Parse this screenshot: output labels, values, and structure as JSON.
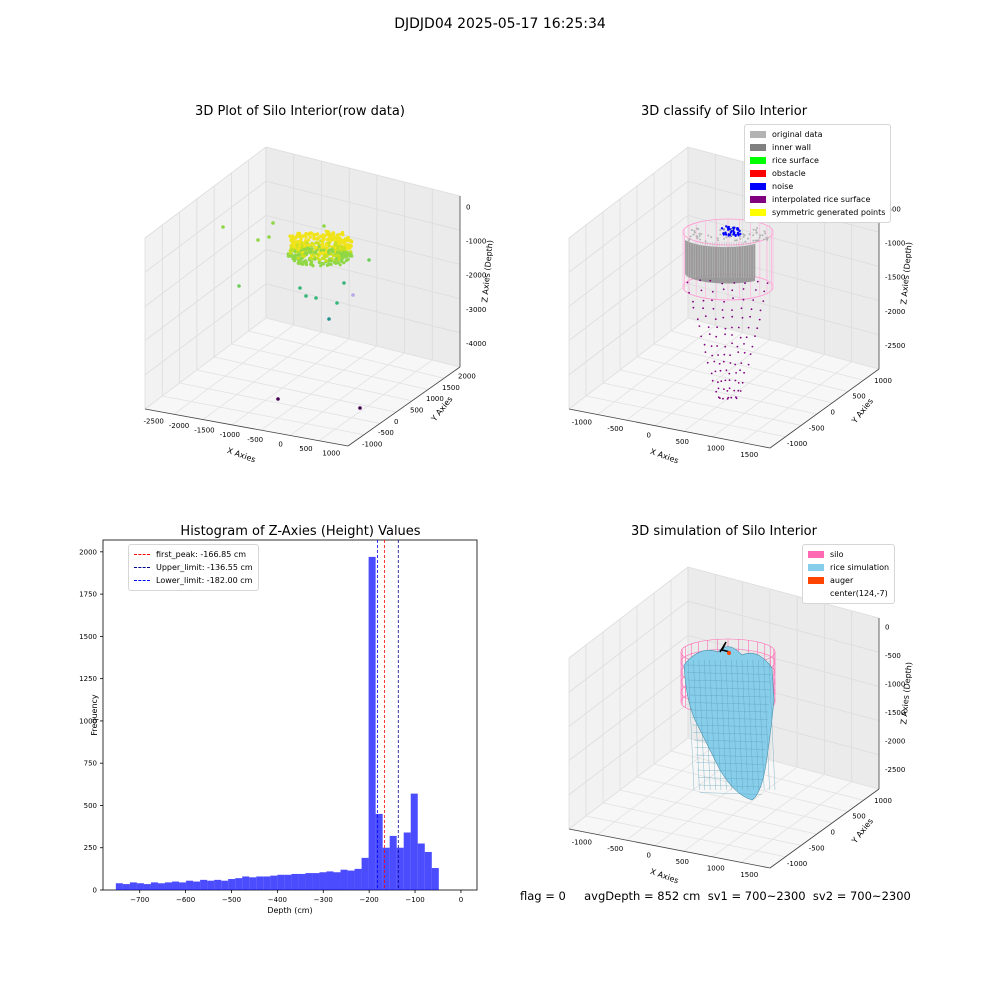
{
  "suptitle": "DJDJD04 2025-05-17 16:25:34",
  "footer": "flag = 0     avgDepth = 852 cm  sv1 = 700~2300  sv2 = 700~2300",
  "chart_data": [
    {
      "type": "scatter3d",
      "title": "3D Plot of Silo Interior(row data)",
      "xlabel": "X Axies",
      "ylabel": "Y Axies",
      "zlabel": "Z Axies (Depth)",
      "xticks": [
        "-2500",
        "-2000",
        "-1500",
        "-1000",
        "-500",
        "0",
        "500",
        "1000"
      ],
      "yticks": [
        "-1000",
        "-500",
        "0",
        "500",
        "1000",
        "1500",
        "2000"
      ],
      "zticks": [
        "0",
        "-1000",
        "-2000",
        "-3000",
        "-4000"
      ],
      "colormap": "viridis",
      "notes": "dense ring of points near z≈-2000 colored yellow-green; sparse outliers"
    },
    {
      "type": "scatter3d",
      "title": "3D classify of Silo Interior",
      "xlabel": "X Axies",
      "ylabel": "Y Axies",
      "zlabel": "Z Axies (Depth)",
      "xticks": [
        "-1000",
        "-500",
        "0",
        "500",
        "1000",
        "1500"
      ],
      "yticks": [
        "-1000",
        "-500",
        "0",
        "500",
        "1000"
      ],
      "zticks": [
        "-500",
        "-1000",
        "-1500",
        "-2000",
        "-2500"
      ],
      "legend": [
        {
          "label": "original data",
          "color": "#b3b3b3"
        },
        {
          "label": "inner wall",
          "color": "#808080"
        },
        {
          "label": "rice surface",
          "color": "#00ff00"
        },
        {
          "label": "obstacle",
          "color": "#ff0000"
        },
        {
          "label": "noise",
          "color": "#0000ff"
        },
        {
          "label": "interpolated rice surface",
          "color": "#800080"
        },
        {
          "label": "symmetric generated points",
          "color": "#ffff00"
        }
      ]
    },
    {
      "type": "bar",
      "title": "Histogram of Z-Axies (Height) Values",
      "xlabel": "Depth (cm)",
      "ylabel": "Frequency",
      "xlim": [
        -780,
        35
      ],
      "ylim": [
        0,
        2070
      ],
      "xticks": [
        -700,
        -600,
        -500,
        -400,
        -300,
        -200,
        -100,
        0
      ],
      "yticks": [
        0,
        250,
        500,
        750,
        1000,
        1250,
        1500,
        1750,
        2000
      ],
      "bin_width": 15.3,
      "bin_start": -752,
      "values": [
        40,
        35,
        45,
        40,
        35,
        45,
        40,
        45,
        50,
        45,
        55,
        50,
        60,
        55,
        60,
        55,
        65,
        70,
        80,
        75,
        80,
        80,
        85,
        90,
        90,
        95,
        95,
        100,
        100,
        105,
        110,
        105,
        120,
        115,
        125,
        190,
        1970,
        450,
        250,
        320,
        250,
        340,
        570,
        275,
        225,
        130
      ],
      "color": "#0000ff",
      "lines": [
        {
          "label": "first_peak: -166.85 cm",
          "x": -166.85,
          "color": "#ff0000"
        },
        {
          "label": "Upper_limit: -136.55 cm",
          "x": -136.55,
          "color": "#00008b"
        },
        {
          "label": "Lower_limit: -182.00 cm",
          "x": -182.0,
          "color": "#0000ff"
        }
      ]
    },
    {
      "type": "surface3d",
      "title": "3D simulation of Silo Interior",
      "xlabel": "X Axies",
      "ylabel": "Y Axies",
      "zlabel": "Z Axies (Depth)",
      "xticks": [
        "-1000",
        "-500",
        "0",
        "500",
        "1000",
        "1500"
      ],
      "yticks": [
        "-1000",
        "-500",
        "0",
        "500",
        "1000"
      ],
      "zticks": [
        "0",
        "-500",
        "-1000",
        "-1500",
        "-2000",
        "-2500"
      ],
      "legend": [
        {
          "label": "silo",
          "color": "#ff69b4"
        },
        {
          "label": "rice simulation",
          "color": "#87ceeb"
        },
        {
          "label": "auger",
          "color": "#ff4500"
        },
        {
          "label": "center(124,-7)",
          "color": ""
        }
      ]
    }
  ]
}
